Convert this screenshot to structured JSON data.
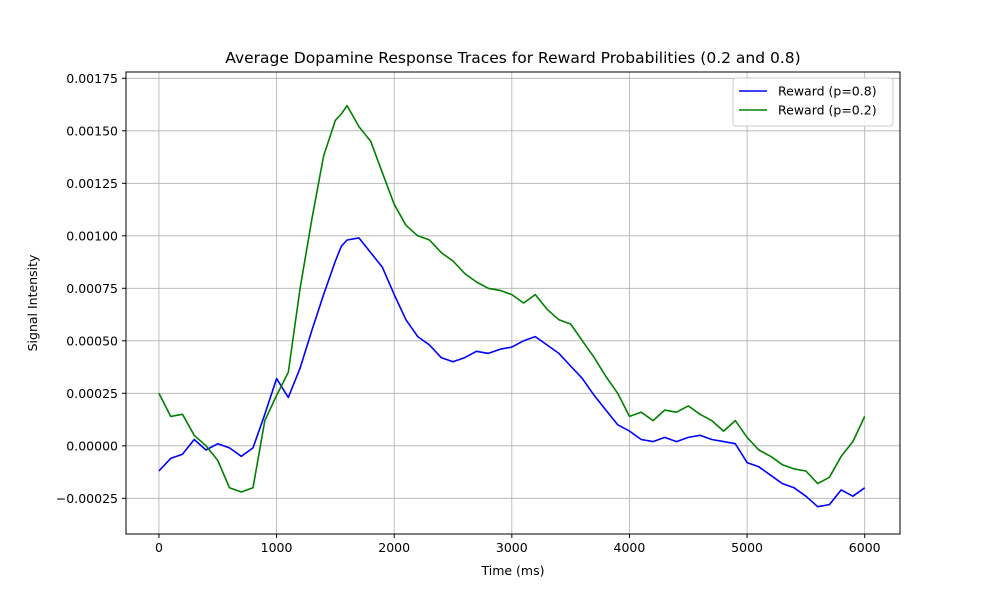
{
  "chart_data": {
    "type": "line",
    "title": "Average Dopamine Response Traces for Reward Probabilities (0.2 and 0.8)",
    "xlabel": "Time (ms)",
    "ylabel": "Signal Intensity",
    "xlim": [
      -280,
      6300
    ],
    "ylim": [
      -0.00042,
      0.00178
    ],
    "xticks": [
      0,
      1000,
      2000,
      3000,
      4000,
      5000,
      6000
    ],
    "xtick_labels": [
      "0",
      "1000",
      "2000",
      "3000",
      "4000",
      "5000",
      "6000"
    ],
    "yticks": [
      -0.00025,
      0.0,
      0.00025,
      0.0005,
      0.00075,
      0.001,
      0.00125,
      0.0015,
      0.00175
    ],
    "ytick_labels": [
      "−0.00025",
      "0.00000",
      "0.00025",
      "0.00050",
      "0.00075",
      "0.00100",
      "0.00125",
      "0.00150",
      "0.00175"
    ],
    "grid": true,
    "legend_position": "top-right",
    "series": [
      {
        "name": "Reward (p=0.8)",
        "color": "#0000ff",
        "x": [
          0,
          100,
          200,
          300,
          400,
          500,
          600,
          700,
          800,
          900,
          1000,
          1100,
          1200,
          1300,
          1400,
          1500,
          1550,
          1600,
          1700,
          1800,
          1900,
          2000,
          2100,
          2200,
          2300,
          2400,
          2500,
          2600,
          2700,
          2800,
          2900,
          3000,
          3100,
          3200,
          3300,
          3400,
          3500,
          3600,
          3700,
          3800,
          3900,
          4000,
          4100,
          4200,
          4300,
          4400,
          4500,
          4600,
          4700,
          4800,
          4900,
          5000,
          5100,
          5200,
          5300,
          5400,
          5500,
          5600,
          5700,
          5800,
          5900,
          6000
        ],
        "y": [
          -0.00012,
          -6e-05,
          -4e-05,
          3e-05,
          -2e-05,
          1e-05,
          -1e-05,
          -5e-05,
          -1e-05,
          0.00015,
          0.00032,
          0.00023,
          0.00037,
          0.00055,
          0.00072,
          0.00088,
          0.00095,
          0.00098,
          0.00099,
          0.00092,
          0.00085,
          0.00072,
          0.0006,
          0.00052,
          0.00048,
          0.00042,
          0.0004,
          0.00042,
          0.00045,
          0.00044,
          0.00046,
          0.00047,
          0.0005,
          0.00052,
          0.00048,
          0.00044,
          0.00038,
          0.00032,
          0.00024,
          0.00017,
          0.0001,
          7e-05,
          3e-05,
          2e-05,
          4e-05,
          2e-05,
          4e-05,
          5e-05,
          3e-05,
          2e-05,
          1e-05,
          -8e-05,
          -0.0001,
          -0.00014,
          -0.00018,
          -0.0002,
          -0.00024,
          -0.00029,
          -0.00028,
          -0.00021,
          -0.00024,
          -0.0002
        ]
      },
      {
        "name": "Reward (p=0.2)",
        "color": "#008000",
        "x": [
          0,
          100,
          200,
          300,
          400,
          500,
          600,
          700,
          800,
          900,
          1000,
          1100,
          1200,
          1300,
          1400,
          1500,
          1550,
          1600,
          1700,
          1800,
          1900,
          2000,
          2100,
          2200,
          2300,
          2400,
          2500,
          2600,
          2700,
          2800,
          2900,
          3000,
          3100,
          3200,
          3300,
          3400,
          3500,
          3600,
          3700,
          3800,
          3900,
          4000,
          4100,
          4200,
          4300,
          4400,
          4500,
          4600,
          4700,
          4800,
          4900,
          5000,
          5100,
          5200,
          5300,
          5400,
          5500,
          5600,
          5700,
          5800,
          5900,
          6000
        ],
        "y": [
          0.00025,
          0.00014,
          0.00015,
          5e-05,
          0.0,
          -7e-05,
          -0.0002,
          -0.00022,
          -0.0002,
          0.00012,
          0.00024,
          0.00035,
          0.00075,
          0.00108,
          0.00138,
          0.00155,
          0.00158,
          0.00162,
          0.00152,
          0.00145,
          0.0013,
          0.00115,
          0.00105,
          0.001,
          0.00098,
          0.00092,
          0.00088,
          0.00082,
          0.00078,
          0.00075,
          0.00074,
          0.00072,
          0.00068,
          0.00072,
          0.00065,
          0.0006,
          0.00058,
          0.0005,
          0.00042,
          0.00033,
          0.00025,
          0.00014,
          0.00016,
          0.00012,
          0.00017,
          0.00016,
          0.00019,
          0.00015,
          0.00012,
          7e-05,
          0.00012,
          4e-05,
          -2e-05,
          -5e-05,
          -9e-05,
          -0.00011,
          -0.00012,
          -0.00018,
          -0.00015,
          -5e-05,
          2e-05,
          0.00014
        ]
      }
    ]
  }
}
